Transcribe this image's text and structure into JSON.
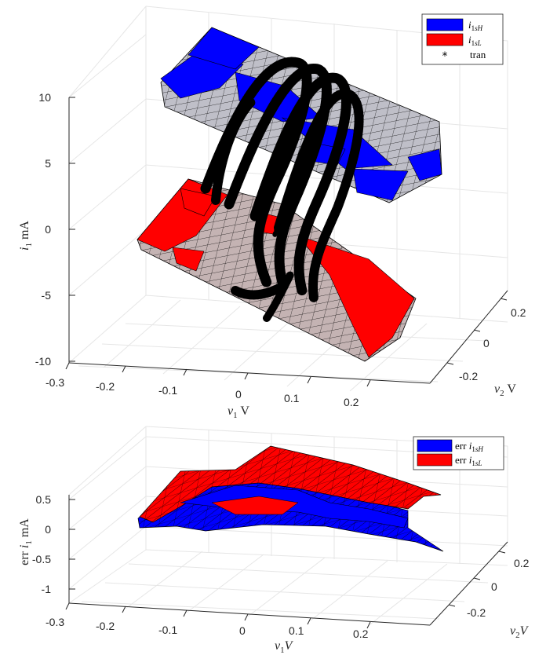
{
  "chart_data": [
    {
      "type": "surface3d",
      "xlabel": "v_1 V",
      "ylabel": "v_2 V",
      "zlabel": "i_1 mA",
      "x_ticks": [
        "-0.3",
        "-0.2",
        "-0.1",
        "0",
        "0.1",
        "0.2"
      ],
      "y_ticks": [
        "-0.2",
        "0",
        "0.2"
      ],
      "z_ticks": [
        "-10",
        "-5",
        "0",
        "5",
        "10"
      ],
      "xlim": [
        -0.3,
        0.3
      ],
      "ylim": [
        -0.3,
        0.3
      ],
      "zlim": [
        -10,
        10
      ],
      "grid": true,
      "legend_position": "top-right",
      "series": [
        {
          "name": "i_1sH",
          "color": "#0000ff",
          "approx_z_range": [
            6,
            10
          ]
        },
        {
          "name": "i_1sL",
          "color": "#ff0000",
          "approx_z_range": [
            -8,
            -2
          ]
        },
        {
          "name": "tran",
          "color": "#000000",
          "marker": "*"
        }
      ],
      "legend": [
        {
          "main": "i",
          "sub1": "1",
          "sub2": "sH"
        },
        {
          "main": "i",
          "sub1": "1",
          "sub2": "sL"
        },
        {
          "text": "tran"
        }
      ]
    },
    {
      "type": "surface3d",
      "xlabel": "v_1V",
      "ylabel": "v_2V",
      "zlabel": "err i_1 mA",
      "x_ticks": [
        "-0.3",
        "-0.2",
        "-0.1",
        "0",
        "0.1",
        "0.2"
      ],
      "y_ticks": [
        "-0.2",
        "0",
        "0.2"
      ],
      "z_ticks": [
        "-1",
        "-0.5",
        "0",
        "0.5"
      ],
      "xlim": [
        -0.3,
        0.3
      ],
      "ylim": [
        -0.3,
        0.3
      ],
      "zlim": [
        -1.2,
        0.6
      ],
      "grid": true,
      "legend_position": "top-right",
      "series": [
        {
          "name": "err i_1sH",
          "color": "#0000ff"
        },
        {
          "name": "err i_1sL",
          "color": "#ff0000"
        }
      ],
      "legend": [
        {
          "prefix": "err ",
          "main": "i",
          "sub1": "1",
          "sub2": "sH"
        },
        {
          "prefix": "err ",
          "main": "i",
          "sub1": "1",
          "sub2": "sL"
        }
      ]
    }
  ]
}
